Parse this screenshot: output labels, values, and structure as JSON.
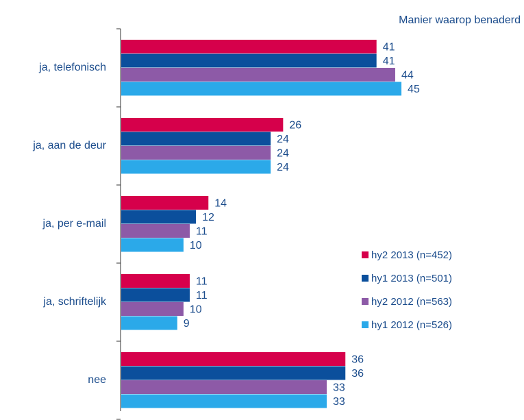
{
  "chart_data": {
    "type": "bar",
    "orientation": "horizontal",
    "title": "Manier waarop benaderd",
    "categories": [
      "ja, telefonisch",
      "ja, aan de deur",
      "ja, per e-mail",
      "ja, schriftelijk",
      "nee"
    ],
    "series": [
      {
        "name": "hy2 2013 (n=452)",
        "color": "#d6004b",
        "values": [
          41,
          26,
          14,
          11,
          36
        ]
      },
      {
        "name": "hy1 2013 (n=501)",
        "color": "#0b4f9c",
        "values": [
          41,
          24,
          12,
          11,
          36
        ]
      },
      {
        "name": "hy2 2012 (n=563)",
        "color": "#8d5aa7",
        "values": [
          44,
          24,
          11,
          10,
          33
        ]
      },
      {
        "name": "hy1 2012 (n=526)",
        "color": "#2ba9e9",
        "values": [
          45,
          24,
          10,
          9,
          33
        ]
      }
    ],
    "legend": "right"
  }
}
